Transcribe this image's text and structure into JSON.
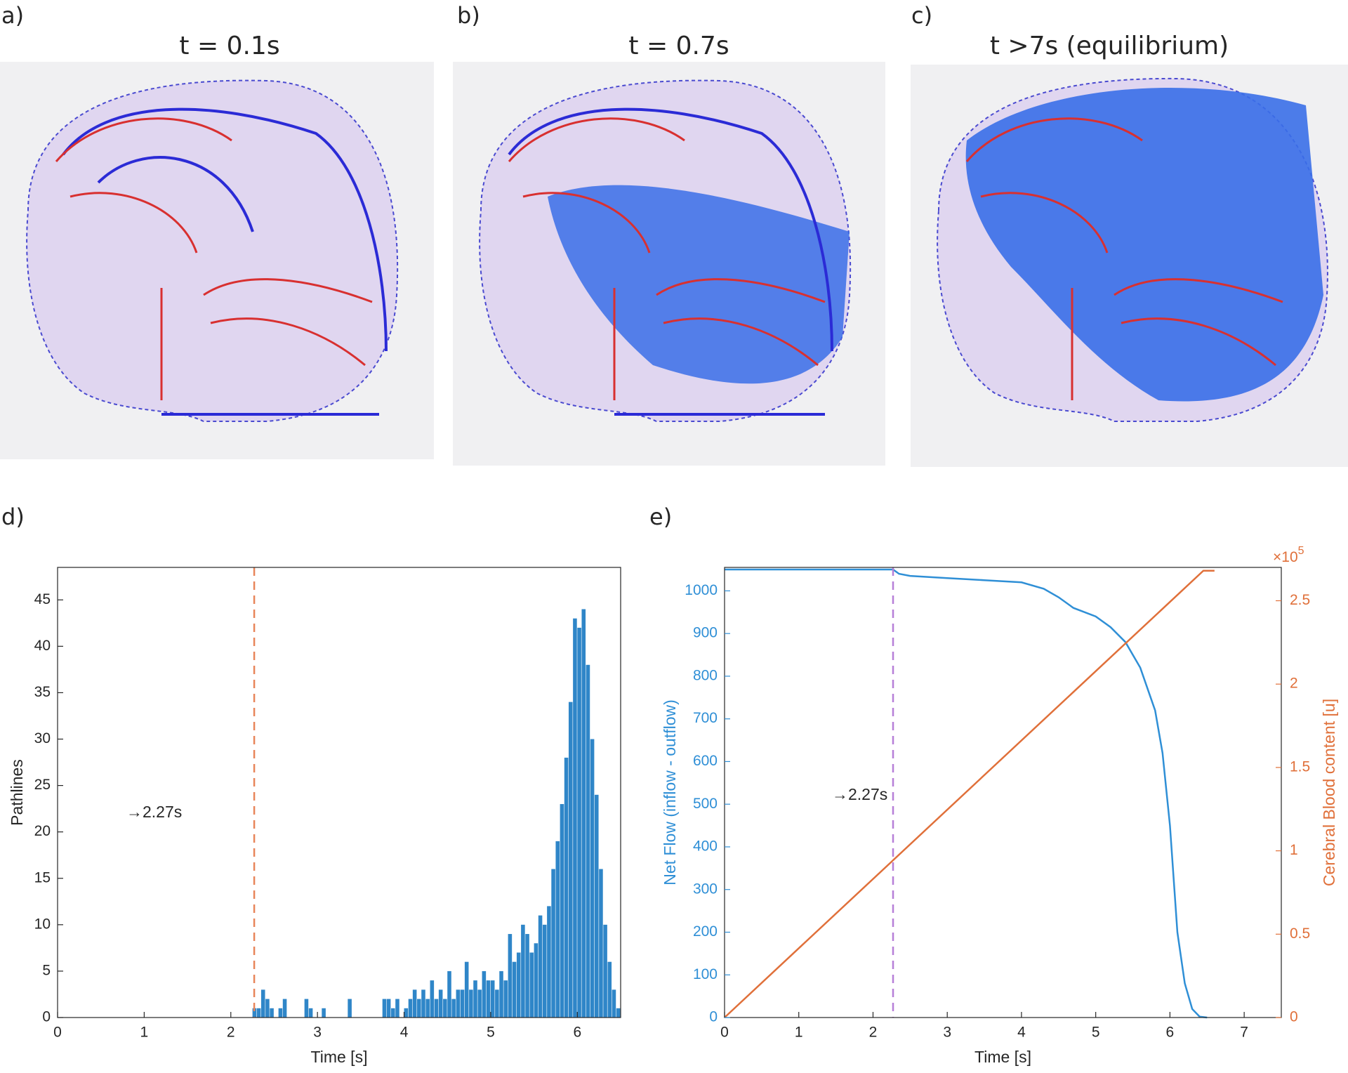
{
  "panels": [
    {
      "label": "a)",
      "title": "t = 0.1s"
    },
    {
      "label": "b)",
      "title": "t = 0.7s"
    },
    {
      "label": "c)",
      "title": "t >7s (equilibrium)"
    }
  ],
  "chart_data": [
    {
      "type": "histogram",
      "panel_label": "d)",
      "xlabel": "Time [s]",
      "ylabel": "Pathlines",
      "xlim": [
        0,
        6.5
      ],
      "xticks": [
        0,
        1,
        2,
        3,
        4,
        5,
        6
      ],
      "ylim": [
        0,
        48.5
      ],
      "yticks": [
        0,
        5,
        10,
        15,
        20,
        25,
        30,
        35,
        40,
        45
      ],
      "color": "#2f86c8",
      "bins": [
        2.25,
        2.3,
        2.35,
        2.4,
        2.45,
        2.5,
        2.55,
        2.6,
        2.65,
        2.7,
        2.75,
        2.8,
        2.85,
        2.9,
        2.95,
        3,
        3.05,
        3.1,
        3.15,
        3.2,
        3.25,
        3.3,
        3.35,
        3.4,
        3.45,
        3.5,
        3.55,
        3.6,
        3.65,
        3.7,
        3.75,
        3.8,
        3.85,
        3.9,
        3.95,
        4,
        4.05,
        4.1,
        4.15,
        4.2,
        4.25,
        4.3,
        4.35,
        4.4,
        4.45,
        4.5,
        4.55,
        4.6,
        4.65,
        4.7,
        4.75,
        4.8,
        4.85,
        4.9,
        4.95,
        5,
        5.05,
        5.1,
        5.15,
        5.2,
        5.25,
        5.3,
        5.35,
        5.4,
        5.45,
        5.5,
        5.55,
        5.6,
        5.65,
        5.7,
        5.75,
        5.8,
        5.85,
        5.9,
        5.95,
        6,
        6.05,
        6.1,
        6.15,
        6.2,
        6.25,
        6.3,
        6.35,
        6.4,
        6.45,
        6.5
      ],
      "values": [
        1,
        1,
        3,
        2,
        1,
        0,
        1,
        2,
        0,
        0,
        0,
        0,
        2,
        1,
        0,
        0,
        1,
        0,
        0,
        0,
        0,
        0,
        2,
        0,
        0,
        0,
        0,
        0,
        0,
        0,
        2,
        2,
        1,
        2,
        0,
        1,
        2,
        3,
        2,
        3,
        2,
        4,
        2,
        3,
        2,
        5,
        2,
        3,
        3,
        6,
        3,
        4,
        3,
        5,
        4,
        4,
        3,
        5,
        4,
        9,
        6,
        7,
        10,
        9,
        7,
        8,
        11,
        10,
        12,
        16,
        19,
        23,
        28,
        34,
        43,
        42,
        44,
        38,
        30,
        24,
        16,
        10,
        6,
        3,
        1
      ],
      "vline": {
        "x": 2.27,
        "color": "#e8855a"
      },
      "annotation": "→2.27s"
    },
    {
      "type": "line",
      "panel_label": "e)",
      "xlabel": "Time [s]",
      "ylabel": "Net Flow (inflow - outflow)",
      "y2label": "Cerebral Blood content [u]",
      "y2_multiplier": "×10",
      "y2_multiplier_exp": "5",
      "xlim": [
        0,
        7.5
      ],
      "xticks": [
        0,
        1,
        2,
        3,
        4,
        5,
        6,
        7
      ],
      "ylim": [
        0,
        1055
      ],
      "yticks": [
        0,
        100,
        200,
        300,
        400,
        500,
        600,
        700,
        800,
        900,
        1000
      ],
      "y2lim": [
        0,
        270000
      ],
      "y2ticks": [
        0,
        {
          "value": 50000,
          "label": "0.5"
        },
        {
          "value": 100000,
          "label": "1"
        },
        {
          "value": 150000,
          "label": "1.5"
        },
        {
          "value": 200000,
          "label": "2"
        },
        {
          "value": 250000,
          "label": "2.5"
        }
      ],
      "ycolor": "#2f8fd6",
      "y2color": "#e0703a",
      "series": [
        {
          "name": "Net Flow",
          "color": "#2f8fd6",
          "x": [
            0,
            2.27,
            2.35,
            2.5,
            3,
            3.5,
            4,
            4.3,
            4.5,
            4.7,
            5,
            5.2,
            5.4,
            5.6,
            5.8,
            5.9,
            6,
            6.1,
            6.2,
            6.3,
            6.4,
            6.5
          ],
          "values": [
            1050,
            1050,
            1040,
            1035,
            1030,
            1025,
            1020,
            1005,
            985,
            960,
            940,
            915,
            880,
            820,
            720,
            620,
            450,
            200,
            80,
            20,
            2,
            0
          ]
        },
        {
          "name": "Cerebral Blood content",
          "color": "#e0703a",
          "axis": "y2",
          "x": [
            0,
            6.45,
            6.6
          ],
          "values": [
            0,
            268000,
            268000
          ]
        }
      ],
      "vline": {
        "x": 2.27,
        "color": "#b77fd8"
      },
      "annotation": "→2.27s"
    }
  ]
}
